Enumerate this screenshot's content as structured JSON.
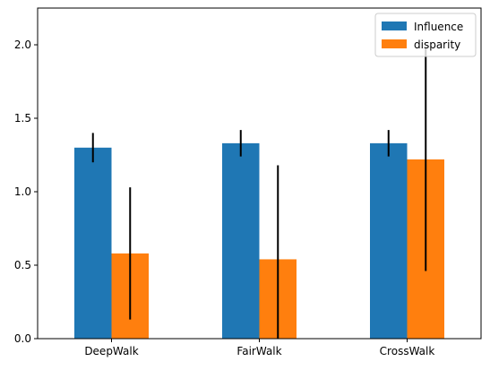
{
  "chart_data": {
    "type": "bar",
    "categories": [
      "DeepWalk",
      "FairWalk",
      "CrossWalk"
    ],
    "series": [
      {
        "name": "Influence",
        "color": "#1f77b4",
        "values": [
          1.3,
          1.33,
          1.33
        ],
        "error": [
          0.1,
          0.09,
          0.09
        ]
      },
      {
        "name": "disparity",
        "color": "#ff7f0e",
        "values": [
          0.58,
          0.54,
          1.22
        ],
        "error": [
          0.45,
          0.64,
          0.76
        ]
      }
    ],
    "ylim": [
      0,
      2.25
    ],
    "yticks": [
      0.0,
      0.5,
      1.0,
      1.5,
      2.0
    ],
    "ytick_labels": [
      "0.0",
      "0.5",
      "1.0",
      "1.5",
      "2.0"
    ],
    "grid": false,
    "legend": "top-right",
    "error_color": "#000000"
  }
}
